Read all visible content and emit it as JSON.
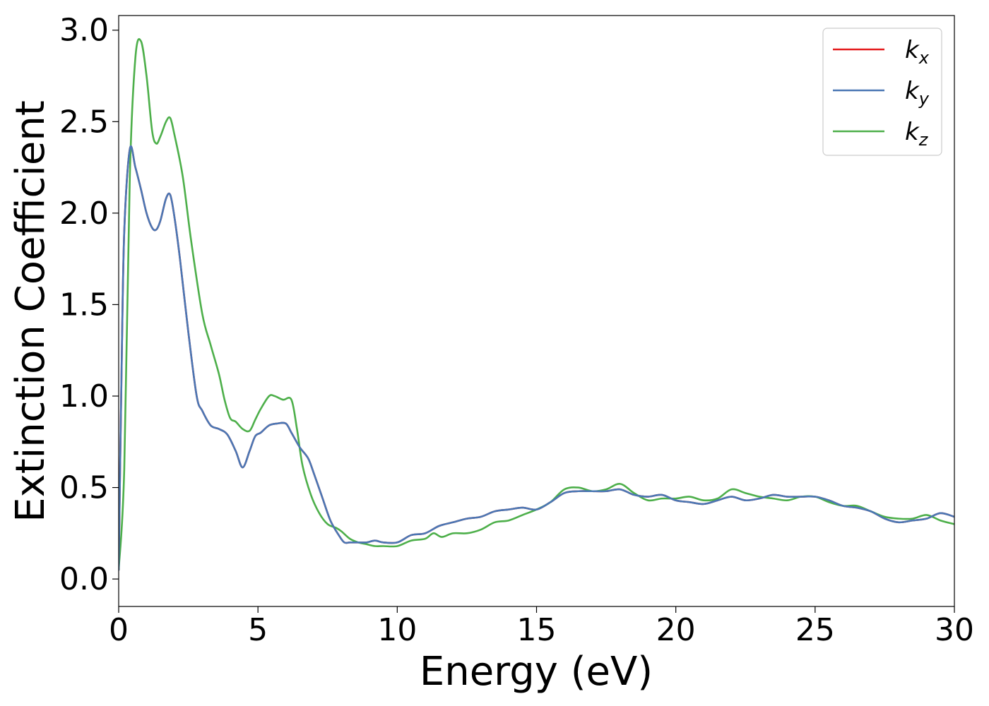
{
  "chart_data": {
    "type": "line",
    "title": "",
    "xlabel": "Energy (eV)",
    "ylabel": "Extinction Coefficient",
    "xlim": [
      0,
      30
    ],
    "ylim": [
      -0.15,
      3.08
    ],
    "xticks": [
      0,
      5,
      10,
      15,
      20,
      25,
      30
    ],
    "xtick_labels": [
      "0",
      "5",
      "10",
      "15",
      "20",
      "25",
      "30"
    ],
    "yticks": [
      0.0,
      0.5,
      1.0,
      1.5,
      2.0,
      2.5,
      3.0
    ],
    "ytick_labels": [
      "0.0",
      "0.5",
      "1.0",
      "1.5",
      "2.0",
      "2.5",
      "3.0"
    ],
    "grid": false,
    "legend_position": "top-right",
    "series": [
      {
        "name": "k",
        "subscript": "x",
        "color": "#e41a1c",
        "x": [
          0,
          0.1,
          0.2,
          0.4,
          0.6,
          0.8,
          1.0,
          1.2,
          1.35,
          1.5,
          1.7,
          1.85,
          2.0,
          2.2,
          2.5,
          2.8,
          3.0,
          3.3,
          3.6,
          3.9,
          4.2,
          4.45,
          4.7,
          4.9,
          5.1,
          5.4,
          5.7,
          6.0,
          6.2,
          6.5,
          6.8,
          7.0,
          7.3,
          7.6,
          7.9,
          8.1,
          8.3,
          8.6,
          8.9,
          9.2,
          9.5,
          10.0,
          10.5,
          11.0,
          11.5,
          12.0,
          12.5,
          13.0,
          13.5,
          14.0,
          14.5,
          15.0,
          15.5,
          16.0,
          16.5,
          17.0,
          17.5,
          18.0,
          18.5,
          19.0,
          19.5,
          20.0,
          20.5,
          21.0,
          21.5,
          22.0,
          22.5,
          23.0,
          23.5,
          24.0,
          24.5,
          25.0,
          25.5,
          26.0,
          26.5,
          27.0,
          27.5,
          28.0,
          28.5,
          29.0,
          29.5,
          30.0
        ],
        "y": [
          0.05,
          1.1,
          1.9,
          2.35,
          2.25,
          2.13,
          2.0,
          1.92,
          1.91,
          1.96,
          2.08,
          2.1,
          1.98,
          1.75,
          1.35,
          1.0,
          0.92,
          0.84,
          0.82,
          0.79,
          0.7,
          0.61,
          0.7,
          0.78,
          0.8,
          0.84,
          0.85,
          0.85,
          0.8,
          0.72,
          0.66,
          0.58,
          0.45,
          0.32,
          0.24,
          0.2,
          0.2,
          0.2,
          0.2,
          0.21,
          0.2,
          0.2,
          0.24,
          0.25,
          0.29,
          0.31,
          0.33,
          0.34,
          0.37,
          0.38,
          0.39,
          0.38,
          0.42,
          0.47,
          0.48,
          0.48,
          0.48,
          0.49,
          0.46,
          0.45,
          0.46,
          0.43,
          0.42,
          0.41,
          0.43,
          0.45,
          0.43,
          0.44,
          0.46,
          0.45,
          0.45,
          0.45,
          0.43,
          0.4,
          0.39,
          0.37,
          0.33,
          0.31,
          0.32,
          0.33,
          0.36,
          0.34
        ]
      },
      {
        "name": "k",
        "subscript": "y",
        "color": "#4a77b4",
        "x": [
          0,
          0.1,
          0.2,
          0.4,
          0.6,
          0.8,
          1.0,
          1.2,
          1.35,
          1.5,
          1.7,
          1.85,
          2.0,
          2.2,
          2.5,
          2.8,
          3.0,
          3.3,
          3.6,
          3.9,
          4.2,
          4.45,
          4.7,
          4.9,
          5.1,
          5.4,
          5.7,
          6.0,
          6.2,
          6.5,
          6.8,
          7.0,
          7.3,
          7.6,
          7.9,
          8.1,
          8.3,
          8.6,
          8.9,
          9.2,
          9.5,
          10.0,
          10.5,
          11.0,
          11.5,
          12.0,
          12.5,
          13.0,
          13.5,
          14.0,
          14.5,
          15.0,
          15.5,
          16.0,
          16.5,
          17.0,
          17.5,
          18.0,
          18.5,
          19.0,
          19.5,
          20.0,
          20.5,
          21.0,
          21.5,
          22.0,
          22.5,
          23.0,
          23.5,
          24.0,
          24.5,
          25.0,
          25.5,
          26.0,
          26.5,
          27.0,
          27.5,
          28.0,
          28.5,
          29.0,
          29.5,
          30.0
        ],
        "y": [
          0.05,
          1.1,
          1.9,
          2.35,
          2.25,
          2.13,
          2.0,
          1.92,
          1.91,
          1.96,
          2.08,
          2.1,
          1.98,
          1.75,
          1.35,
          1.0,
          0.92,
          0.84,
          0.82,
          0.79,
          0.7,
          0.61,
          0.7,
          0.78,
          0.8,
          0.84,
          0.85,
          0.85,
          0.8,
          0.72,
          0.66,
          0.58,
          0.45,
          0.32,
          0.24,
          0.2,
          0.2,
          0.2,
          0.2,
          0.21,
          0.2,
          0.2,
          0.24,
          0.25,
          0.29,
          0.31,
          0.33,
          0.34,
          0.37,
          0.38,
          0.39,
          0.38,
          0.42,
          0.47,
          0.48,
          0.48,
          0.48,
          0.49,
          0.46,
          0.45,
          0.46,
          0.43,
          0.42,
          0.41,
          0.43,
          0.45,
          0.43,
          0.44,
          0.46,
          0.45,
          0.45,
          0.45,
          0.43,
          0.4,
          0.39,
          0.37,
          0.33,
          0.31,
          0.32,
          0.33,
          0.36,
          0.34
        ]
      },
      {
        "name": "k",
        "subscript": "z",
        "color": "#4daf4a",
        "x": [
          0,
          0.2,
          0.4,
          0.6,
          0.8,
          1.0,
          1.2,
          1.35,
          1.5,
          1.7,
          1.85,
          2.0,
          2.3,
          2.6,
          3.0,
          3.3,
          3.6,
          3.8,
          4.0,
          4.2,
          4.45,
          4.7,
          4.9,
          5.1,
          5.4,
          5.6,
          5.9,
          6.2,
          6.4,
          6.6,
          6.9,
          7.2,
          7.5,
          7.8,
          8.0,
          8.3,
          8.6,
          8.9,
          9.2,
          9.5,
          10.0,
          10.5,
          11.0,
          11.3,
          11.6,
          12.0,
          12.5,
          13.0,
          13.5,
          14.0,
          14.5,
          15.0,
          15.5,
          16.0,
          16.5,
          17.0,
          17.5,
          18.0,
          18.5,
          19.0,
          19.5,
          20.0,
          20.5,
          21.0,
          21.5,
          22.0,
          22.5,
          23.0,
          23.5,
          24.0,
          24.5,
          25.0,
          25.5,
          26.0,
          26.5,
          27.0,
          27.5,
          28.0,
          28.5,
          29.0,
          29.5,
          30.0
        ],
        "y": [
          0.05,
          0.6,
          2.2,
          2.85,
          2.94,
          2.75,
          2.45,
          2.38,
          2.42,
          2.5,
          2.52,
          2.43,
          2.2,
          1.85,
          1.45,
          1.28,
          1.12,
          0.98,
          0.88,
          0.86,
          0.82,
          0.81,
          0.87,
          0.93,
          1.0,
          1.0,
          0.98,
          0.98,
          0.82,
          0.62,
          0.46,
          0.36,
          0.3,
          0.28,
          0.26,
          0.22,
          0.2,
          0.19,
          0.18,
          0.18,
          0.18,
          0.21,
          0.22,
          0.25,
          0.23,
          0.25,
          0.25,
          0.27,
          0.31,
          0.32,
          0.35,
          0.38,
          0.42,
          0.49,
          0.5,
          0.48,
          0.49,
          0.52,
          0.47,
          0.43,
          0.44,
          0.44,
          0.45,
          0.43,
          0.44,
          0.49,
          0.47,
          0.45,
          0.44,
          0.43,
          0.45,
          0.45,
          0.42,
          0.4,
          0.4,
          0.37,
          0.34,
          0.33,
          0.33,
          0.35,
          0.32,
          0.3
        ]
      }
    ]
  }
}
